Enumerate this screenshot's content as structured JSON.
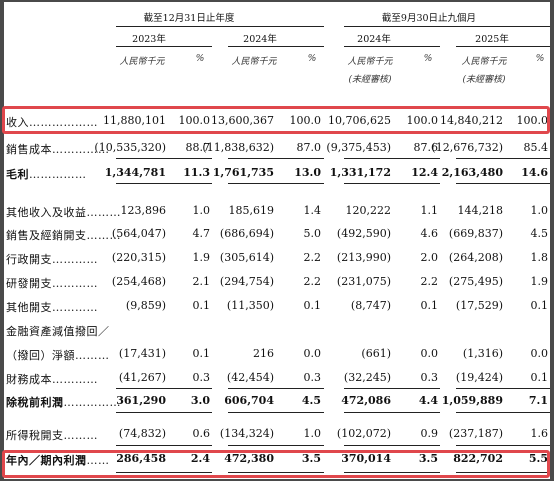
{
  "header": {
    "group_year": "截至12月31日止年度",
    "group_nine": "截至9月30日止九個月",
    "years": [
      "2023年",
      "2024年",
      "2024年",
      "2025年"
    ],
    "currency": "人民幣千元",
    "pct": "%",
    "unaudited": "(未經審核)"
  },
  "rows": [
    {
      "label": "收入",
      "dots": "………………",
      "bold": false,
      "values": [
        "11,880,101",
        "100.0",
        "13,600,367",
        "100.0",
        "10,706,625",
        "100.0",
        "14,840,212",
        "100.0"
      ]
    },
    {
      "label": "銷售成本",
      "dots": "……………",
      "bold": false,
      "values": [
        "(10,535,320)",
        "88.7",
        "(11,838,632)",
        "87.0",
        "(9,375,453)",
        "87.6",
        "(12,676,732)",
        "85.4"
      ]
    },
    {
      "label": "毛利",
      "dots": "……………",
      "bold": true,
      "values": [
        "1,344,781",
        "11.3",
        "1,761,735",
        "13.0",
        "1,331,172",
        "12.4",
        "2,163,480",
        "14.6"
      ]
    },
    {
      "label": "其他收入及收益",
      "dots": "………",
      "bold": false,
      "values": [
        "123,896",
        "1.0",
        "185,619",
        "1.4",
        "120,222",
        "1.1",
        "144,218",
        "1.0"
      ]
    },
    {
      "label": "銷售及經銷開支",
      "dots": "………",
      "bold": false,
      "values": [
        "(564,047)",
        "4.7",
        "(686,694)",
        "5.0",
        "(492,590)",
        "4.6",
        "(669,837)",
        "4.5"
      ]
    },
    {
      "label": "行政開支",
      "dots": "…………",
      "bold": false,
      "values": [
        "(220,315)",
        "1.9",
        "(305,614)",
        "2.2",
        "(213,990)",
        "2.0",
        "(264,208)",
        "1.8"
      ]
    },
    {
      "label": "研發開支",
      "dots": "…………",
      "bold": false,
      "values": [
        "(254,468)",
        "2.1",
        "(294,754)",
        "2.2",
        "(231,075)",
        "2.2",
        "(275,495)",
        "1.9"
      ]
    },
    {
      "label": "其他開支",
      "dots": "…………",
      "bold": false,
      "values": [
        "(9,859)",
        "0.1",
        "(11,350)",
        "0.1",
        "(8,747)",
        "0.1",
        "(17,529)",
        "0.1"
      ]
    },
    {
      "label": "金融資產減值撥回／",
      "dots": "",
      "bold": false,
      "values": [
        "",
        "",
        "",
        "",
        "",
        "",
        "",
        ""
      ]
    },
    {
      "label": "（撥回）淨額",
      "dots": "………",
      "bold": false,
      "values": [
        "(17,431)",
        "0.1",
        "216",
        "0.0",
        "(661)",
        "0.0",
        "(1,316)",
        "0.0"
      ]
    },
    {
      "label": "財務成本",
      "dots": "…………",
      "bold": false,
      "values": [
        "(41,267)",
        "0.3",
        "(42,454)",
        "0.3",
        "(32,245)",
        "0.3",
        "(19,424)",
        "0.1"
      ]
    },
    {
      "label": "除稅前利潤",
      "dots": "……………",
      "bold": true,
      "values": [
        "361,290",
        "3.0",
        "606,704",
        "4.5",
        "472,086",
        "4.4",
        "1,059,889",
        "7.1"
      ]
    },
    {
      "label": "所得稅開支",
      "dots": "………",
      "bold": false,
      "values": [
        "(74,832)",
        "0.6",
        "(134,324)",
        "1.0",
        "(102,072)",
        "0.9",
        "(237,187)",
        "1.6"
      ]
    },
    {
      "label": "年內／期內利潤",
      "dots": "……",
      "bold": true,
      "values": [
        "286,458",
        "2.4",
        "472,380",
        "3.5",
        "370,014",
        "3.5",
        "822,702",
        "5.5"
      ]
    }
  ],
  "highlight_color": "#e0474c"
}
